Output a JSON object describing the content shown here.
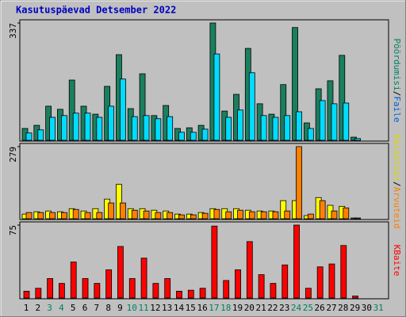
{
  "chart_data": {
    "type": "bar",
    "title": "Kasutuspäevad Detsember 2022",
    "separator": "/",
    "categories": [
      "1",
      "2",
      "3",
      "4",
      "5",
      "6",
      "7",
      "8",
      "9",
      "10",
      "11",
      "12",
      "13",
      "14",
      "15",
      "16",
      "17",
      "18",
      "19",
      "20",
      "21",
      "22",
      "23",
      "24",
      "25",
      "26",
      "27",
      "28",
      "29",
      "30",
      "31"
    ],
    "category_colors": [
      "#000000",
      "#000000",
      "#00805f",
      "#00805f",
      "#000000",
      "#000000",
      "#000000",
      "#000000",
      "#000000",
      "#00805f",
      "#00805f",
      "#000000",
      "#000000",
      "#000000",
      "#000000",
      "#000000",
      "#00805f",
      "#00805f",
      "#000000",
      "#000000",
      "#000000",
      "#000000",
      "#000000",
      "#00805f",
      "#00805f",
      "#000000",
      "#000000",
      "#000000",
      "#000000",
      "#000000",
      "#00805f"
    ],
    "panels": [
      {
        "ylim": [
          0,
          337
        ],
        "yticks": [
          337
        ],
        "series": [
          {
            "name": "Pöördumisi",
            "color": "#1b7f5f",
            "label_color": "#00805f",
            "values": [
              34,
              43,
              98,
              89,
              173,
              98,
              75,
              155,
              246,
              91,
              191,
              71,
              100,
              34,
              36,
              43,
              337,
              84,
              132,
              264,
              105,
              75,
              160,
              324,
              50,
              148,
              171,
              244,
              9,
              null,
              null
            ]
          },
          {
            "name": "Faile",
            "color": "#00dcff",
            "label_color": "#0060d0",
            "values": [
              21,
              30,
              66,
              71,
              78,
              78,
              66,
              98,
              176,
              68,
              71,
              62,
              68,
              23,
              23,
              32,
              248,
              66,
              87,
              194,
              71,
              66,
              71,
              82,
              34,
              114,
              105,
              107,
              5,
              null,
              null
            ]
          }
        ]
      },
      {
        "ylim": [
          0,
          279
        ],
        "yticks": [
          279
        ],
        "series": [
          {
            "name": "Külastusi",
            "color": "#ffff00",
            "label_color": "#d8d800",
            "values": [
              18,
              27,
              30,
              27,
              39,
              30,
              39,
              76,
              133,
              39,
              39,
              33,
              30,
              18,
              18,
              24,
              39,
              39,
              39,
              33,
              30,
              30,
              70,
              70,
              12,
              82,
              52,
              48,
              3,
              null,
              null
            ]
          },
          {
            "name": "Arvuteid",
            "color": "#ff8000",
            "label_color": "#ff8000",
            "values": [
              24,
              24,
              24,
              24,
              36,
              24,
              24,
              61,
              61,
              33,
              30,
              24,
              24,
              15,
              15,
              21,
              36,
              27,
              33,
              27,
              27,
              27,
              30,
              279,
              18,
              70,
              30,
              42,
              3,
              null,
              null
            ]
          }
        ]
      },
      {
        "ylim": [
          0,
          75
        ],
        "yticks": [
          75
        ],
        "series": [
          {
            "name": "KBaite",
            "color": "#ff0000",
            "label_color": "#ff0000",
            "values": [
              7,
              10,
              20,
              15,
              37,
              20,
              15,
              29,
              53,
              20,
              41,
              15,
              20,
              7,
              8,
              10,
              74,
              18,
              29,
              58,
              24,
              15,
              34,
              75,
              10,
              32,
              35,
              54,
              2,
              null,
              null
            ]
          }
        ]
      }
    ]
  }
}
